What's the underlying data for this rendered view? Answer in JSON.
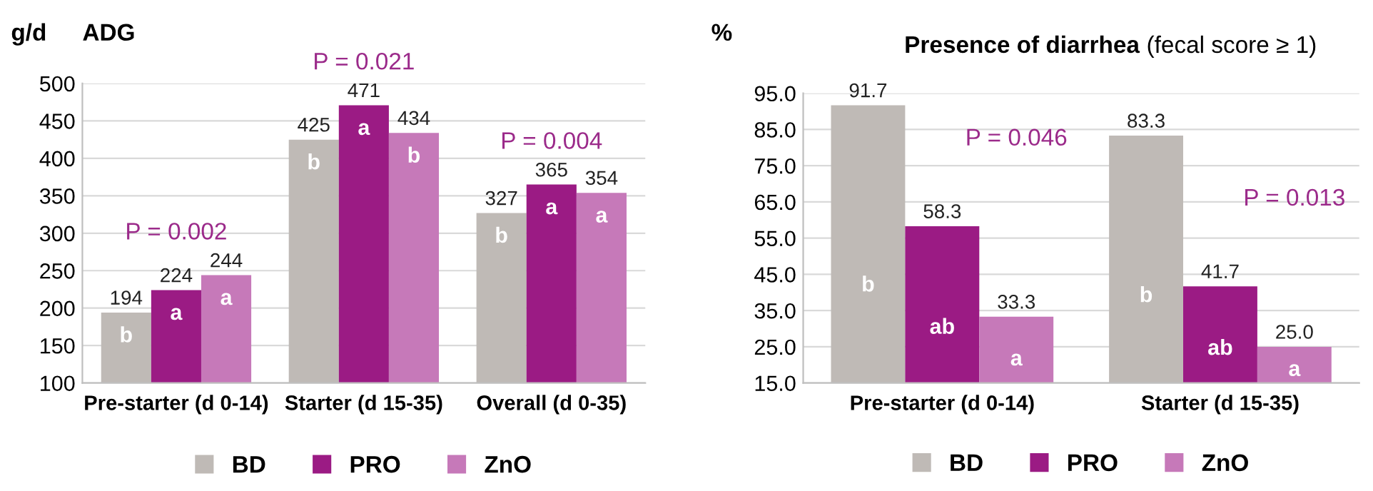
{
  "chart_data": [
    {
      "type": "bar",
      "title": "ADG",
      "ylabel": "g/d",
      "categories": [
        "Pre-starter (d 0-14)",
        "Starter (d 15-35)",
        "Overall (d 0-35)"
      ],
      "series": [
        {
          "name": "BD",
          "color": "#bfbab6",
          "values": [
            194,
            425,
            327
          ]
        },
        {
          "name": "PRO",
          "color": "#9b1b84",
          "values": [
            224,
            471,
            365
          ]
        },
        {
          "name": "ZnO",
          "color": "#c679b9",
          "values": [
            244,
            434,
            354
          ]
        }
      ],
      "ylim": [
        100,
        500
      ],
      "yticks": [
        100,
        150,
        200,
        250,
        300,
        350,
        400,
        450,
        500
      ],
      "grid": "y",
      "legend": "bottom",
      "data_labels": true,
      "annotations": [
        "P = 0.002",
        "P = 0.021",
        "P = 0.004",
        "b",
        "a",
        "a",
        "b",
        "a",
        "b",
        "b",
        "a",
        "a"
      ]
    },
    {
      "type": "bar",
      "title": "Presence of diarrhea",
      "subtitle": "(fecal score ≥ 1)",
      "ylabel": "%",
      "categories": [
        "Pre-starter (d 0-14)",
        "Starter (d 15-35)"
      ],
      "series": [
        {
          "name": "BD",
          "color": "#bfbab6",
          "values": [
            91.7,
            83.3
          ],
          "value_labels": [
            "91.7",
            "83.3"
          ]
        },
        {
          "name": "PRO",
          "color": "#9b1b84",
          "values": [
            58.3,
            41.7
          ],
          "value_labels": [
            "58.3",
            "41.7"
          ]
        },
        {
          "name": "ZnO",
          "color": "#c679b9",
          "values": [
            33.3,
            25.0
          ],
          "value_labels": [
            "33.3",
            "25.0"
          ]
        }
      ],
      "ylim": [
        15,
        95
      ],
      "yticks": [
        {
          "value": 15,
          "label": "15.0"
        },
        {
          "value": 25,
          "label": "25.0"
        },
        {
          "value": 35,
          "label": "35.0"
        },
        {
          "value": 45,
          "label": "45.0"
        },
        {
          "value": 55,
          "label": "55.0"
        },
        {
          "value": 65,
          "label": "65.0"
        },
        {
          "value": 75,
          "label": "75.0"
        },
        {
          "value": 85,
          "label": "85.0"
        },
        {
          "value": 95,
          "label": "95.0"
        }
      ],
      "grid": "y",
      "legend": "bottom",
      "data_labels": true,
      "annotations": [
        "P = 0.046",
        "P = 0.013",
        "b",
        "ab",
        "a",
        "b",
        "ab",
        "a"
      ]
    }
  ]
}
